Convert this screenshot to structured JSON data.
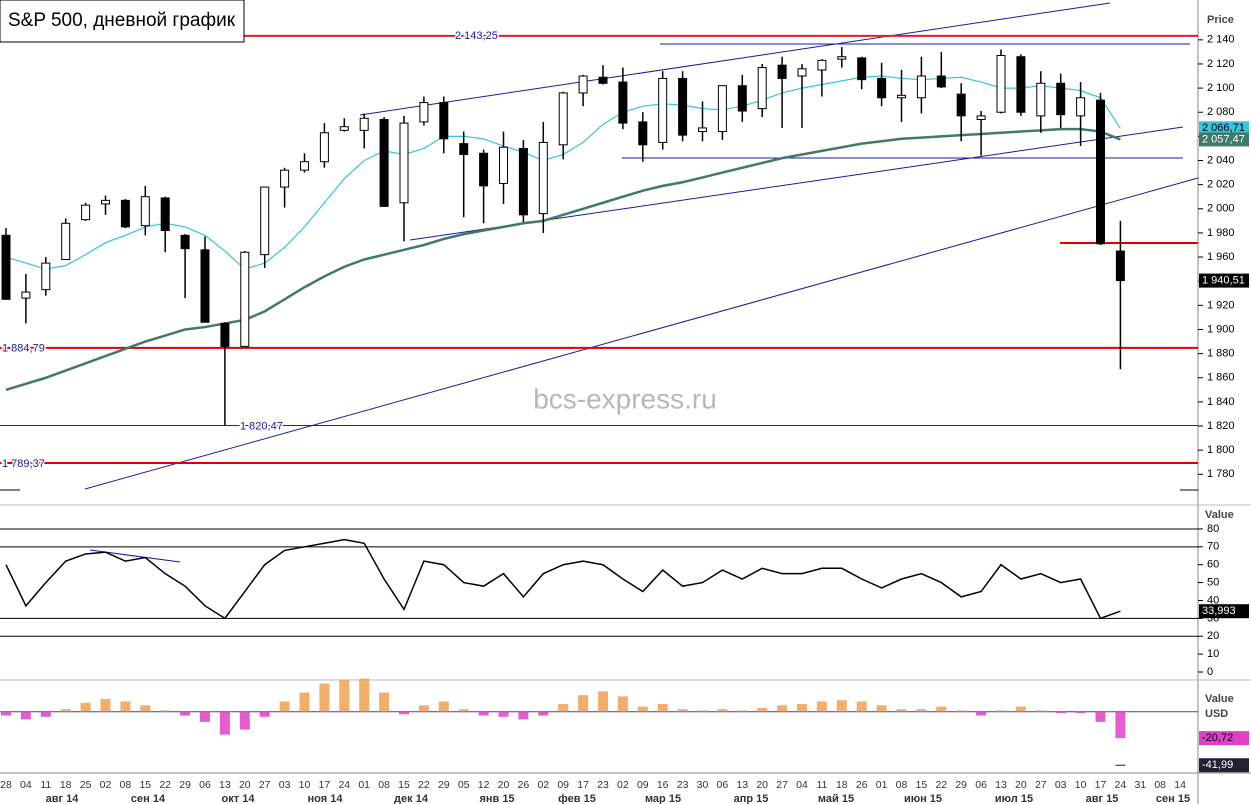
{
  "chart_data": [
    {
      "type": "candlestick",
      "title": "S&P 500, дневной график",
      "axis_title": "Price",
      "watermark": "bcs-express.ru",
      "x_labels": [
        "28",
        "04",
        "11",
        "18",
        "25",
        "02",
        "08",
        "15",
        "22",
        "29",
        "06",
        "13",
        "20",
        "27",
        "03",
        "10",
        "17",
        "24",
        "01",
        "08",
        "15",
        "22",
        "29",
        "05",
        "12",
        "20",
        "26",
        "02",
        "09",
        "17",
        "23",
        "02",
        "09",
        "16",
        "23",
        "30",
        "06",
        "13",
        "20",
        "27",
        "04",
        "11",
        "18",
        "26",
        "01",
        "08",
        "15",
        "22",
        "29",
        "06",
        "13",
        "20",
        "27",
        "03",
        "10",
        "17",
        "24",
        "31",
        "08",
        "14"
      ],
      "month_labels": [
        "авг 14",
        "сен 14",
        "окт 14",
        "ноя 14",
        "дек 14",
        "янв 15",
        "фев 15",
        "мар 15",
        "апр 15",
        "май 15",
        "июн 15",
        "июл 15",
        "авг 15",
        "сен 15"
      ],
      "open": [
        1978,
        1926,
        1933,
        1958,
        1991,
        2004,
        2007,
        1986,
        2009,
        1978,
        1966,
        1905,
        1886,
        1962,
        2018,
        2032,
        2039,
        2065,
        2065,
        2074,
        2005,
        2072,
        2088,
        2054,
        2046,
        2021,
        2050,
        1996,
        2053,
        2096,
        2109,
        2105,
        2072,
        2055,
        2108,
        2064,
        2064,
        2102,
        2083,
        2119,
        2110,
        2115,
        2124,
        2125,
        2108,
        2092,
        2092,
        2110,
        2095,
        2074,
        2080,
        2126,
        2077,
        2104,
        2077,
        2090,
        1965
      ],
      "high": [
        1984,
        1946,
        1960,
        1992,
        2005,
        2011,
        2008,
        2019,
        2010,
        1979,
        1977,
        1906,
        1965,
        2018,
        2034,
        2046,
        2071,
        2075,
        2079,
        2076,
        2077,
        2093,
        2093,
        2064,
        2049,
        2064,
        2057,
        2072,
        2097,
        2111,
        2119,
        2117,
        2080,
        2114,
        2114,
        2089,
        2102,
        2111,
        2120,
        2126,
        2120,
        2124,
        2134,
        2126,
        2121,
        2115,
        2126,
        2130,
        2104,
        2081,
        2132,
        2128,
        2114,
        2112,
        2105,
        2096,
        1990
      ],
      "low": [
        1925,
        1905,
        1928,
        1958,
        1990,
        1995,
        1984,
        1978,
        1964,
        1926,
        1906,
        1820.47,
        1886,
        1951,
        2001,
        2030,
        2034,
        2064,
        2050,
        2002,
        1973,
        2069,
        2046,
        1993,
        1988,
        2004,
        1989,
        1980,
        2041,
        2085,
        2103,
        2066,
        2039,
        2049,
        2056,
        2056,
        2057,
        2072,
        2076,
        2067,
        2067,
        2093,
        2117,
        2099,
        2085,
        2072,
        2079,
        2100,
        2056,
        2044,
        2079,
        2077,
        2063,
        2067,
        2052,
        1970,
        1867
      ],
      "close": [
        1925,
        1931,
        1955,
        1988,
        2003,
        2007,
        1985,
        2010,
        1982,
        1967,
        1906,
        1886,
        1964,
        2018,
        2032,
        2039,
        2063,
        2068,
        2075,
        2002,
        2071,
        2088,
        2058,
        2045,
        2019,
        2051,
        1995,
        2055,
        2096,
        2110,
        2104,
        2071,
        2053,
        2108,
        2061,
        2067,
        2102,
        2081,
        2117,
        2108,
        2116,
        2123,
        2126,
        2107,
        2092,
        2094,
        2110,
        2101,
        2077,
        2077,
        2127,
        2080,
        2104,
        2078,
        2092,
        1971,
        1940.51
      ],
      "last": {
        "value": 1940.51,
        "label": "1 940,51"
      },
      "series": [
        {
          "name": "MA 50",
          "color": "#33c6e0",
          "last_label": "2 066,71",
          "values": [
            1960,
            1955,
            1950,
            1953,
            1962,
            1972,
            1978,
            1985,
            1988,
            1985,
            1978,
            1965,
            1950,
            1955,
            1968,
            1985,
            2005,
            2025,
            2040,
            2048,
            2045,
            2050,
            2060,
            2060,
            2058,
            2052,
            2047,
            2040,
            2045,
            2055,
            2070,
            2080,
            2085,
            2087,
            2086,
            2083,
            2082,
            2085,
            2090,
            2096,
            2100,
            2103,
            2106,
            2109,
            2110,
            2108,
            2107,
            2108,
            2109,
            2105,
            2100,
            2100,
            2102,
            2100,
            2098,
            2092,
            2066.71
          ]
        },
        {
          "name": "MA 200",
          "color": "#3f7a6a",
          "last_label": "2 057,47",
          "values": [
            1850,
            1855,
            1860,
            1866,
            1872,
            1878,
            1884,
            1890,
            1895,
            1900,
            1902,
            1905,
            1908,
            1915,
            1925,
            1935,
            1944,
            1952,
            1958,
            1962,
            1966,
            1970,
            1975,
            1979,
            1982,
            1985,
            1988,
            1990,
            1995,
            2000,
            2005,
            2010,
            2015,
            2019,
            2022,
            2026,
            2030,
            2034,
            2038,
            2042,
            2045,
            2048,
            2051,
            2054,
            2056,
            2058,
            2059,
            2060,
            2061,
            2062,
            2063,
            2064,
            2065,
            2066,
            2066,
            2064,
            2057.47
          ]
        }
      ],
      "levels": [
        {
          "value": 2143.25,
          "label": "2 143,25",
          "color": "#e02020"
        },
        {
          "value": 1884.79,
          "label": "1 884,79",
          "color": "#e00000"
        },
        {
          "value": 1820.47,
          "label": "1 820,47",
          "color": "#2020a0"
        },
        {
          "value": 1789.37,
          "label": "1 789,37",
          "color": "#e00000"
        }
      ],
      "ylim": [
        1767,
        2173
      ],
      "yticks": [
        {
          "value": 1780,
          "label": "1 780"
        },
        {
          "value": 1800,
          "label": "1 800"
        },
        {
          "value": 1820,
          "label": "1 820"
        },
        {
          "value": 1840,
          "label": "1 840"
        },
        {
          "value": 1860,
          "label": "1 860"
        },
        {
          "value": 1880,
          "label": "1 880"
        },
        {
          "value": 1900,
          "label": "1 900"
        },
        {
          "value": 1920,
          "label": "1 920"
        },
        {
          "value": 1940,
          "label": "1 940"
        },
        {
          "value": 1960,
          "label": "1 960"
        },
        {
          "value": 1980,
          "label": "1 980"
        },
        {
          "value": 2000,
          "label": "2 000"
        },
        {
          "value": 2020,
          "label": "2 020"
        },
        {
          "value": 2040,
          "label": "2 040"
        },
        {
          "value": 2060,
          "label": "2 060"
        },
        {
          "value": 2080,
          "label": "2 080"
        },
        {
          "value": 2100,
          "label": "2 100"
        },
        {
          "value": 2120,
          "label": "2 120"
        },
        {
          "value": 2140,
          "label": "2 140"
        }
      ]
    },
    {
      "type": "line",
      "axis_title": "Value",
      "color": "#000000",
      "values": [
        60,
        37,
        50,
        62,
        66,
        67,
        62,
        64,
        55,
        48,
        37,
        30,
        45,
        60,
        68,
        70,
        72,
        74,
        72,
        52,
        35,
        62,
        60,
        50,
        48,
        55,
        42,
        55,
        60,
        62,
        60,
        52,
        45,
        57,
        48,
        50,
        57,
        52,
        58,
        55,
        55,
        58,
        58,
        52,
        47,
        52,
        55,
        50,
        42,
        45,
        60,
        52,
        55,
        50,
        52,
        30,
        33.993
      ],
      "last": {
        "value": 33.993,
        "label": "33,993"
      },
      "levels": [
        20,
        30,
        70,
        80
      ],
      "ylim": [
        0,
        85
      ],
      "yticks": [
        0,
        10,
        20,
        30,
        40,
        50,
        60,
        70,
        80
      ]
    },
    {
      "type": "bar",
      "axis_title": [
        "Value",
        "USD"
      ],
      "colors": {
        "positive": "#f0a050",
        "negative": "#e040c8"
      },
      "values": [
        -3,
        -6,
        -4,
        2,
        7,
        10,
        8,
        5,
        1,
        -3,
        -8,
        -18,
        -14,
        -4,
        8,
        15,
        22,
        25,
        26,
        15,
        -2,
        5,
        8,
        2,
        -3,
        -4,
        -6,
        -3,
        6,
        13,
        16,
        12,
        4,
        6,
        2,
        1,
        2,
        1,
        3,
        5,
        6,
        8,
        9,
        8,
        5,
        2,
        2,
        4,
        1,
        -3,
        1,
        4,
        1,
        -1,
        -1,
        -8,
        -20.72
      ],
      "last": {
        "value": -20.72,
        "label": "-20,72"
      },
      "signal": {
        "value": -41.99,
        "label": "-41,99"
      },
      "ylim": [
        -52,
        28
      ]
    }
  ]
}
